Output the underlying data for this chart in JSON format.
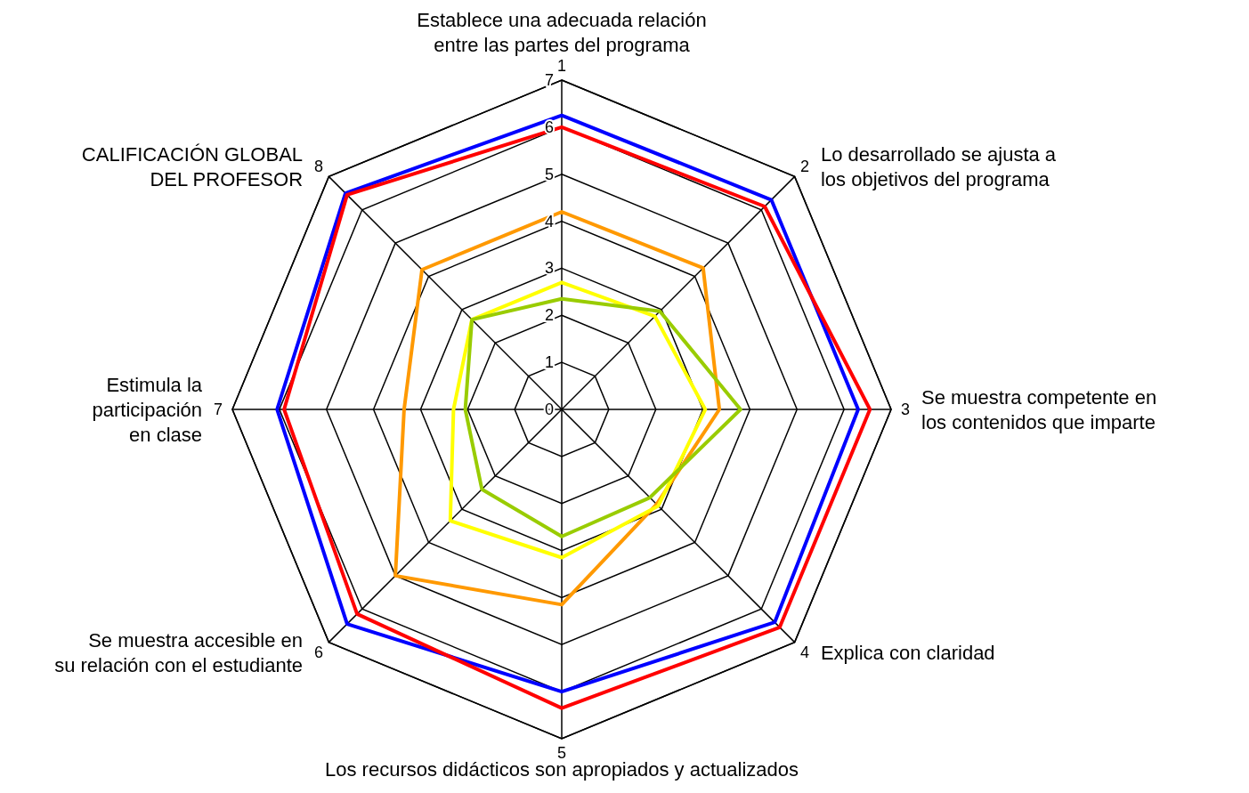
{
  "chart_data": {
    "type": "radar",
    "categories": [
      "Establece una adecuada relación\nentre las partes del programa",
      "Lo desarrollado se ajusta a\nlos objetivos del programa",
      "Se muestra competente en\nlos contenidos que imparte",
      "Explica con claridad",
      "Los recursos didácticos son apropiados y actualizados",
      "Se muestra accesible en\nsu relación con el estudiante",
      "Estimula la\nparticipación\nen clase",
      "CALIFICACIÓN GLOBAL\nDEL PROFESOR"
    ],
    "series": [
      {
        "color": "#0000ff",
        "values": [
          6.25,
          6.3,
          6.3,
          6.4,
          6.0,
          6.45,
          6.05,
          6.5
        ]
      },
      {
        "color": "#ff0000",
        "values": [
          6.0,
          6.1,
          6.55,
          6.55,
          6.35,
          6.15,
          5.9,
          6.45
        ]
      },
      {
        "color": "#ff9900",
        "values": [
          4.2,
          4.25,
          3.35,
          2.85,
          4.15,
          5.0,
          3.35,
          4.2
        ]
      },
      {
        "color": "#ffff00",
        "values": [
          2.7,
          2.8,
          3.05,
          2.9,
          3.15,
          3.35,
          2.3,
          2.7
        ]
      },
      {
        "color": "#99cc00",
        "values": [
          2.35,
          2.95,
          3.8,
          2.65,
          2.7,
          2.4,
          2.05,
          2.7
        ]
      }
    ],
    "ylim": [
      0,
      7
    ],
    "yticks": [
      0,
      1,
      2,
      3,
      4,
      5,
      6,
      7
    ],
    "grid": true,
    "annotations": [
      "1",
      "2",
      "3",
      "4",
      "5",
      "6",
      "7",
      "8"
    ]
  }
}
